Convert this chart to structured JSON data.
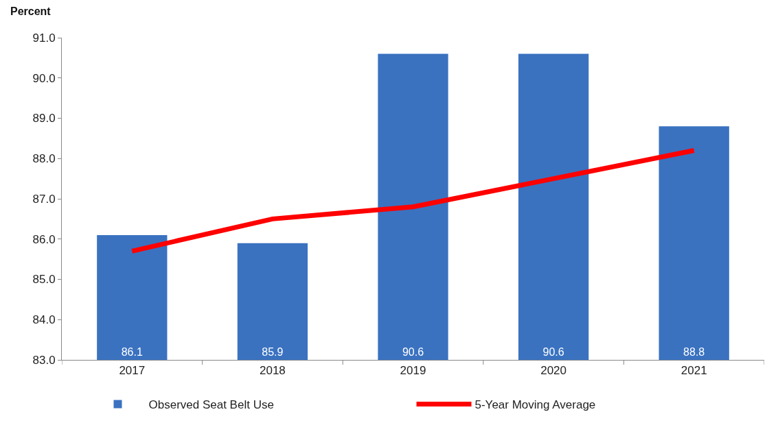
{
  "chart_data": {
    "type": "bar",
    "ylabel": "Percent",
    "categories": [
      "2017",
      "2018",
      "2019",
      "2020",
      "2021"
    ],
    "series": [
      {
        "name": "Observed Seat Belt Use",
        "color": "#3a72c0",
        "values": [
          86.1,
          85.9,
          90.6,
          90.6,
          88.8
        ],
        "value_labels": [
          "86.1",
          "85.9",
          "90.6",
          "90.6",
          "88.8"
        ]
      },
      {
        "name": "5-Year Moving Average",
        "type": "line",
        "color": "#ff0000",
        "values": [
          85.7,
          86.5,
          86.8,
          87.5,
          88.2
        ]
      }
    ],
    "ylim": [
      83,
      91
    ],
    "yticks": [
      {
        "value": 83,
        "label": "83.0"
      },
      {
        "value": 84,
        "label": "84.0"
      },
      {
        "value": 85,
        "label": "85.0"
      },
      {
        "value": 86,
        "label": "86.0"
      },
      {
        "value": 87,
        "label": "87.0"
      },
      {
        "value": 88,
        "label": "88.0"
      },
      {
        "value": 89,
        "label": "89.0"
      },
      {
        "value": 90,
        "label": "90.0"
      },
      {
        "value": 91,
        "label": "91.0"
      }
    ],
    "grid": false,
    "legend": "bottom",
    "marker": "none",
    "line_style": "solid"
  }
}
